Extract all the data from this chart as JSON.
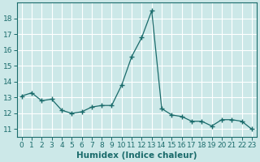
{
  "x": [
    0,
    1,
    2,
    3,
    4,
    5,
    6,
    7,
    8,
    9,
    10,
    11,
    12,
    13,
    14,
    15,
    16,
    17,
    18,
    19,
    20,
    21,
    22,
    23
  ],
  "y": [
    13.1,
    13.3,
    12.8,
    12.9,
    12.2,
    12.0,
    12.1,
    12.4,
    12.5,
    12.5,
    13.8,
    15.6,
    16.8,
    18.5,
    12.3,
    11.9,
    11.8,
    11.5,
    11.5,
    11.2,
    11.6,
    11.6,
    11.5,
    11.0
  ],
  "xlabel": "Humidex (Indice chaleur)",
  "ylim": [
    10.5,
    19.0
  ],
  "xlim": [
    -0.5,
    23.5
  ],
  "yticks": [
    11,
    12,
    13,
    14,
    15,
    16,
    17,
    18
  ],
  "xticks": [
    0,
    1,
    2,
    3,
    4,
    5,
    6,
    7,
    8,
    9,
    10,
    11,
    12,
    13,
    14,
    15,
    16,
    17,
    18,
    19,
    20,
    21,
    22,
    23
  ],
  "line_color": "#1a6b6b",
  "marker_color": "#1a6b6b",
  "bg_color": "#cce8e8",
  "grid_color": "#ffffff",
  "grid_minor_color": "#ddf0f0",
  "tick_label_color": "#1a6b6b",
  "xlabel_color": "#1a6b6b",
  "xlabel_fontsize": 7.5,
  "tick_fontsize": 6.5
}
